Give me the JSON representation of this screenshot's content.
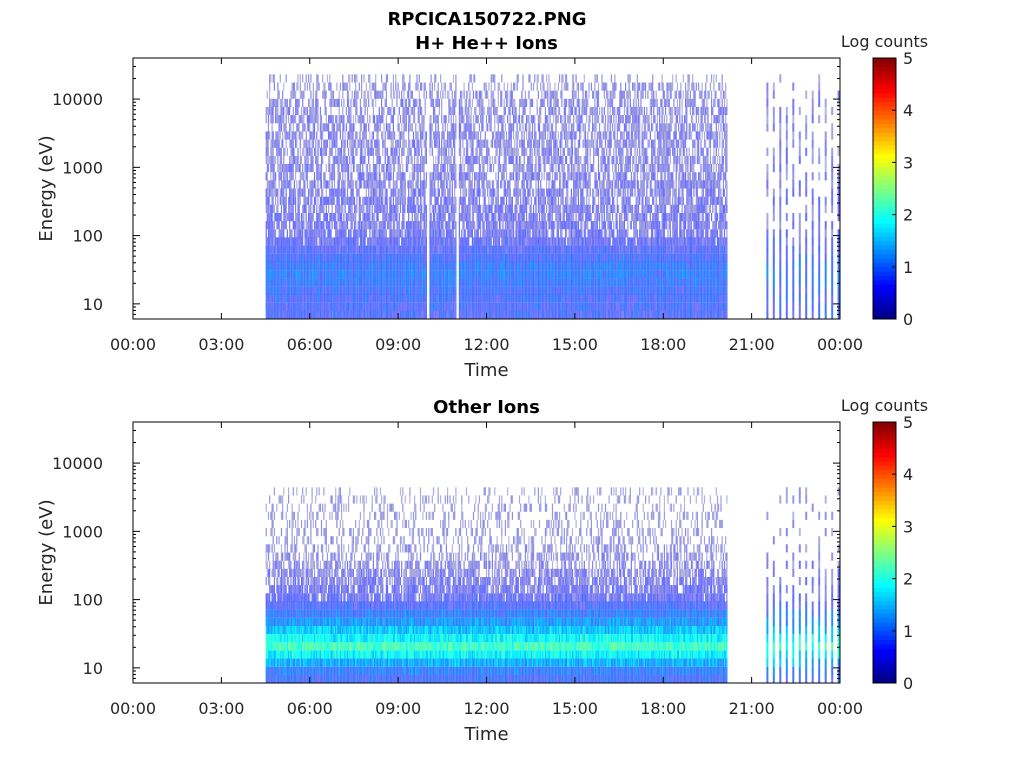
{
  "title": "RPCICA150722.PNG",
  "chart_data": [
    {
      "type": "heatmap",
      "title": "H+ He++ Ions",
      "xlabel": "Time",
      "ylabel": "Energy (eV)",
      "y_scale": "log",
      "ylim": [
        6,
        40000
      ],
      "x_ticks": [
        "00:00",
        "03:00",
        "06:00",
        "09:00",
        "12:00",
        "15:00",
        "18:00",
        "21:00",
        "00:00"
      ],
      "x_tick_hours": [
        0,
        3,
        6,
        9,
        12,
        15,
        18,
        21,
        24
      ],
      "y_ticks": [
        "10",
        "100",
        "1000",
        "10000"
      ],
      "y_tick_values": [
        10,
        100,
        1000,
        10000
      ],
      "colorbar": {
        "label": "Log counts",
        "ticks": [
          "0",
          "1",
          "2",
          "3",
          "4",
          "5"
        ],
        "range": [
          0,
          5
        ],
        "colormap": "jet"
      },
      "data_segments": [
        {
          "start": "04:30",
          "end": "20:10",
          "description": "continuous coverage"
        },
        {
          "start": "21:30",
          "end": "24:00",
          "description": "periodic sweeps"
        }
      ],
      "gaps_in_segment": [
        "10:00",
        "11:00"
      ],
      "energy_profile": [
        {
          "energy_ev": 8,
          "log_counts": 0.8
        },
        {
          "energy_ev": 15,
          "log_counts": 0.9
        },
        {
          "energy_ev": 30,
          "log_counts": 1.1
        },
        {
          "energy_ev": 100,
          "log_counts": 0.5
        },
        {
          "energy_ev": 1000,
          "log_counts": 0.35
        },
        {
          "energy_ev": 10000,
          "log_counts": 0.3
        },
        {
          "energy_ev": 25000,
          "log_counts": 0.05
        }
      ]
    },
    {
      "type": "heatmap",
      "title": "Other Ions",
      "xlabel": "Time",
      "ylabel": "Energy (eV)",
      "y_scale": "log",
      "ylim": [
        6,
        40000
      ],
      "x_ticks": [
        "00:00",
        "03:00",
        "06:00",
        "09:00",
        "12:00",
        "15:00",
        "18:00",
        "21:00",
        "00:00"
      ],
      "x_tick_hours": [
        0,
        3,
        6,
        9,
        12,
        15,
        18,
        21,
        24
      ],
      "y_ticks": [
        "10",
        "100",
        "1000",
        "10000"
      ],
      "y_tick_values": [
        10,
        100,
        1000,
        10000
      ],
      "colorbar": {
        "label": "Log counts",
        "ticks": [
          "0",
          "1",
          "2",
          "3",
          "4",
          "5"
        ],
        "range": [
          0,
          5
        ],
        "colormap": "jet"
      },
      "data_segments": [
        {
          "start": "04:30",
          "end": "20:10",
          "description": "continuous coverage"
        },
        {
          "start": "21:30",
          "end": "24:00",
          "description": "periodic sweeps"
        }
      ],
      "energy_profile": [
        {
          "energy_ev": 8,
          "log_counts": 0.9
        },
        {
          "energy_ev": 20,
          "log_counts": 2.2
        },
        {
          "energy_ev": 35,
          "log_counts": 1.6
        },
        {
          "energy_ev": 100,
          "log_counts": 0.6
        },
        {
          "energy_ev": 500,
          "log_counts": 0.2
        },
        {
          "energy_ev": 5000,
          "log_counts": 0.05
        }
      ]
    }
  ]
}
